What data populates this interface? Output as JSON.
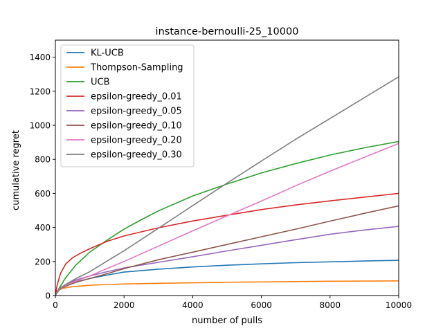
{
  "chart_data": {
    "type": "line",
    "title": "instance-bernoulli-25_10000",
    "xlabel": "number of pulls",
    "ylabel": "cumulative regret",
    "xlim": [
      0,
      10000
    ],
    "ylim": [
      0,
      1500
    ],
    "xticks": [
      0,
      2000,
      4000,
      6000,
      8000,
      10000
    ],
    "yticks": [
      0,
      200,
      400,
      600,
      800,
      1000,
      1200,
      1400
    ],
    "grid": false,
    "legend_position": "top-left",
    "series": [
      {
        "name": "KL-UCB",
        "color": "#1f77b4",
        "x": [
          0,
          100,
          300,
          600,
          1000,
          1500,
          2000,
          3000,
          4000,
          5000,
          6000,
          7000,
          8000,
          9000,
          10000
        ],
        "y": [
          0,
          30,
          55,
          80,
          100,
          120,
          138,
          155,
          168,
          178,
          186,
          193,
          198,
          203,
          207
        ]
      },
      {
        "name": "Thompson-Sampling",
        "color": "#ff7f0e",
        "x": [
          0,
          50,
          200,
          500,
          1000,
          1500,
          2000,
          3000,
          4000,
          5000,
          6000,
          7000,
          8000,
          9000,
          10000
        ],
        "y": [
          0,
          28,
          42,
          52,
          60,
          65,
          68,
          72,
          75,
          78,
          80,
          82,
          84,
          85,
          86
        ]
      },
      {
        "name": "UCB",
        "color": "#2ca02c",
        "x": [
          0,
          100,
          300,
          600,
          1000,
          1500,
          2000,
          2500,
          3000,
          4000,
          5000,
          6000,
          7000,
          8000,
          9000,
          10000
        ],
        "y": [
          0,
          40,
          105,
          180,
          255,
          325,
          390,
          445,
          497,
          585,
          655,
          720,
          775,
          825,
          868,
          905
        ]
      },
      {
        "name": "epsilon-greedy_0.01",
        "color": "#d62728",
        "x": [
          0,
          50,
          150,
          300,
          500,
          700,
          1000,
          1500,
          2000,
          3000,
          4000,
          5000,
          6000,
          7000,
          8000,
          9000,
          10000
        ],
        "y": [
          0,
          60,
          130,
          185,
          222,
          245,
          275,
          318,
          350,
          398,
          438,
          472,
          505,
          532,
          556,
          578,
          600
        ]
      },
      {
        "name": "epsilon-greedy_0.05",
        "color": "#9467bd",
        "x": [
          0,
          100,
          300,
          600,
          1000,
          1500,
          2000,
          3000,
          4000,
          5000,
          6000,
          7000,
          8000,
          9000,
          10000
        ],
        "y": [
          0,
          38,
          65,
          92,
          115,
          140,
          162,
          195,
          228,
          262,
          295,
          328,
          360,
          385,
          406
        ]
      },
      {
        "name": "epsilon-greedy_0.10",
        "color": "#8c564b",
        "x": [
          0,
          100,
          300,
          600,
          1000,
          1500,
          2000,
          3000,
          4000,
          5000,
          6000,
          7000,
          8000,
          9000,
          10000
        ],
        "y": [
          0,
          35,
          55,
          78,
          100,
          128,
          158,
          210,
          255,
          300,
          345,
          390,
          437,
          483,
          527
        ]
      },
      {
        "name": "epsilon-greedy_0.20",
        "color": "#e377c2",
        "x": [
          0,
          100,
          300,
          600,
          1000,
          1500,
          2000,
          3000,
          4000,
          5000,
          6000,
          7000,
          8000,
          9000,
          10000
        ],
        "y": [
          0,
          38,
          60,
          85,
          115,
          158,
          200,
          290,
          380,
          468,
          555,
          645,
          730,
          812,
          893
        ]
      },
      {
        "name": "epsilon-greedy_0.30",
        "color": "#7f7f7f",
        "x": [
          0,
          100,
          300,
          600,
          1000,
          1500,
          2000,
          3000,
          4000,
          5000,
          6000,
          7000,
          8000,
          9000,
          10000
        ],
        "y": [
          0,
          40,
          65,
          100,
          140,
          202,
          263,
          395,
          528,
          660,
          790,
          918,
          1040,
          1162,
          1285
        ]
      }
    ]
  }
}
